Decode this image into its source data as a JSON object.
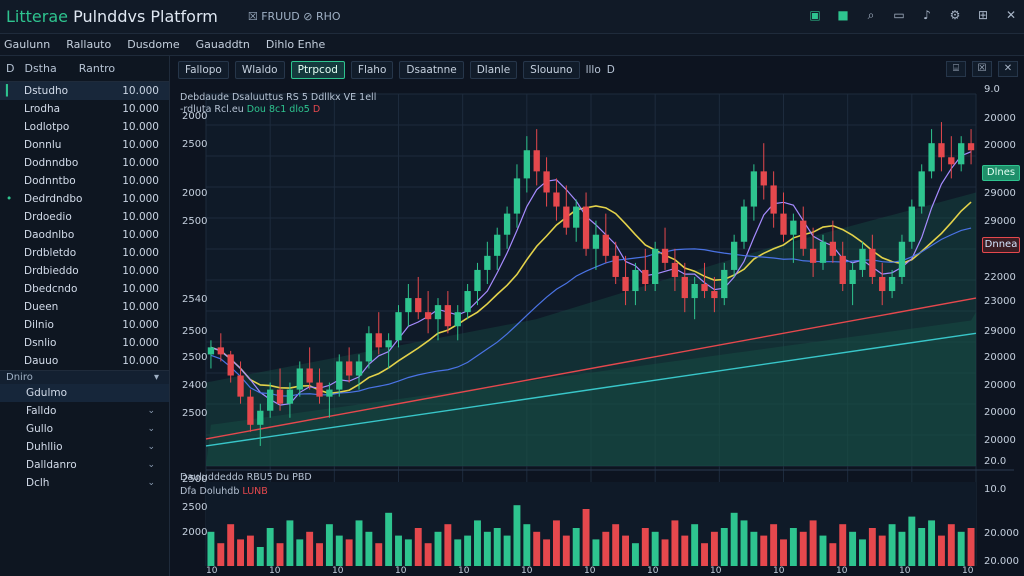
{
  "app": {
    "title_part1": "Litterae",
    "title_part2": " Pulnddvs Platform",
    "title_mid": "☒ FRUUD ⊘ RHO"
  },
  "menu": [
    "Gaulunn",
    "Rallauto",
    "Dusdome",
    "Gauaddtn",
    "Dihlo Enhe"
  ],
  "sidebar": {
    "head": [
      "D",
      "Dstha",
      "Rantro"
    ],
    "rows": [
      {
        "name": "Dstudho",
        "value": "10.000"
      },
      {
        "name": "Lrodha",
        "value": "10.000"
      },
      {
        "name": "Lodlotpo",
        "value": "10.000"
      },
      {
        "name": "Donnlu",
        "value": "10.000"
      },
      {
        "name": "Dodnndbo",
        "value": "10.000"
      },
      {
        "name": "Dodnntbo",
        "value": "10.000"
      },
      {
        "name": "Dedrdndbo",
        "value": "10.000"
      },
      {
        "name": "Drdoedio",
        "value": "10.000"
      },
      {
        "name": "Daodnlbo",
        "value": "10.000"
      },
      {
        "name": "Drdbletdo",
        "value": "10.000"
      },
      {
        "name": "Drdbieddo",
        "value": "10.000"
      },
      {
        "name": "Dbedcndo",
        "value": "10.000"
      },
      {
        "name": "Dueen",
        "value": "10.000"
      },
      {
        "name": "Dilnio",
        "value": "10.000"
      },
      {
        "name": "Dsnlio",
        "value": "10.000"
      },
      {
        "name": "Dauuo",
        "value": "10.000"
      }
    ],
    "section": {
      "label": "Dniro",
      "value": "▾"
    },
    "subs": [
      "Gdulmo",
      "Falldo",
      "Gullo",
      "Duhllio",
      "Dalldanro",
      "Dclh"
    ]
  },
  "tabs": {
    "items": [
      "Fallopo",
      "Wlaldo",
      "Ptrpcod",
      "Flaho",
      "Dsaatnne",
      "Dlanle",
      "Slouuno"
    ],
    "active": 2,
    "extra": [
      "lllo",
      "D"
    ]
  },
  "tools": [
    "⌸",
    "☒",
    "✕"
  ],
  "legend": {
    "line1": "Debdaude Dsaluuttus RS 5 Ddllkx VE 1ell",
    "line2a": "-rdluta Rcl.eu",
    "line2b": " Dou 8c1 dlo5",
    "line2c": " D",
    "vol1": "Dauluddeddo RBU5 Du PBD",
    "vol2a": "Dfa Doluhdb ",
    "vol2b": "LUNB"
  },
  "axis_left": [
    "2000",
    "2500",
    "2000",
    "2500",
    "2540",
    "2500",
    "2500",
    "2400",
    "2500"
  ],
  "axis_right": [
    "9.0",
    "20000",
    "20000",
    "29000",
    "29000",
    "22000",
    "23000",
    "29000",
    "20000",
    "20000",
    "20000",
    "20000",
    "20.0"
  ],
  "tags": {
    "green": "Dlnes",
    "red": "Dnnea"
  },
  "vol_left": [
    "2500",
    "2500",
    "2000"
  ],
  "vol_right": [
    "10.0",
    "20.000",
    "20.000"
  ],
  "xaxis": [
    "10",
    "10",
    "10",
    "10",
    "10",
    "10",
    "10",
    "10",
    "10",
    "10",
    "10",
    "10",
    "10"
  ],
  "colors": {
    "bg": "#0d1420",
    "up": "#2ec48f",
    "down": "#e5484d",
    "grid": "#1d2b3d"
  },
  "chart_data": {
    "type": "candlestick",
    "candles": [
      [
        0.3,
        0.34,
        0.26,
        0.32
      ],
      [
        0.32,
        0.36,
        0.28,
        0.3
      ],
      [
        0.3,
        0.31,
        0.22,
        0.24
      ],
      [
        0.24,
        0.28,
        0.16,
        0.18
      ],
      [
        0.18,
        0.2,
        0.08,
        0.1
      ],
      [
        0.1,
        0.16,
        0.04,
        0.14
      ],
      [
        0.14,
        0.22,
        0.12,
        0.2
      ],
      [
        0.2,
        0.26,
        0.14,
        0.16
      ],
      [
        0.16,
        0.22,
        0.12,
        0.2
      ],
      [
        0.2,
        0.28,
        0.18,
        0.26
      ],
      [
        0.26,
        0.32,
        0.2,
        0.22
      ],
      [
        0.22,
        0.26,
        0.16,
        0.18
      ],
      [
        0.18,
        0.22,
        0.12,
        0.2
      ],
      [
        0.2,
        0.3,
        0.18,
        0.28
      ],
      [
        0.28,
        0.32,
        0.22,
        0.24
      ],
      [
        0.24,
        0.3,
        0.2,
        0.28
      ],
      [
        0.28,
        0.38,
        0.26,
        0.36
      ],
      [
        0.36,
        0.42,
        0.3,
        0.32
      ],
      [
        0.32,
        0.36,
        0.26,
        0.34
      ],
      [
        0.34,
        0.44,
        0.32,
        0.42
      ],
      [
        0.42,
        0.5,
        0.38,
        0.46
      ],
      [
        0.46,
        0.52,
        0.4,
        0.42
      ],
      [
        0.42,
        0.48,
        0.36,
        0.4
      ],
      [
        0.4,
        0.46,
        0.34,
        0.44
      ],
      [
        0.44,
        0.48,
        0.36,
        0.38
      ],
      [
        0.38,
        0.44,
        0.34,
        0.42
      ],
      [
        0.42,
        0.5,
        0.4,
        0.48
      ],
      [
        0.48,
        0.56,
        0.44,
        0.54
      ],
      [
        0.54,
        0.62,
        0.5,
        0.58
      ],
      [
        0.58,
        0.66,
        0.54,
        0.64
      ],
      [
        0.64,
        0.72,
        0.6,
        0.7
      ],
      [
        0.7,
        0.84,
        0.66,
        0.8
      ],
      [
        0.8,
        0.92,
        0.76,
        0.88
      ],
      [
        0.88,
        0.94,
        0.78,
        0.82
      ],
      [
        0.82,
        0.86,
        0.72,
        0.76
      ],
      [
        0.76,
        0.8,
        0.68,
        0.72
      ],
      [
        0.72,
        0.78,
        0.64,
        0.66
      ],
      [
        0.66,
        0.74,
        0.62,
        0.72
      ],
      [
        0.72,
        0.76,
        0.58,
        0.6
      ],
      [
        0.6,
        0.68,
        0.54,
        0.64
      ],
      [
        0.64,
        0.7,
        0.56,
        0.58
      ],
      [
        0.58,
        0.62,
        0.5,
        0.52
      ],
      [
        0.52,
        0.58,
        0.44,
        0.48
      ],
      [
        0.48,
        0.56,
        0.44,
        0.54
      ],
      [
        0.54,
        0.6,
        0.48,
        0.5
      ],
      [
        0.5,
        0.62,
        0.48,
        0.6
      ],
      [
        0.6,
        0.66,
        0.54,
        0.56
      ],
      [
        0.56,
        0.6,
        0.48,
        0.52
      ],
      [
        0.52,
        0.56,
        0.42,
        0.46
      ],
      [
        0.46,
        0.52,
        0.4,
        0.5
      ],
      [
        0.5,
        0.56,
        0.46,
        0.48
      ],
      [
        0.48,
        0.52,
        0.42,
        0.46
      ],
      [
        0.46,
        0.56,
        0.44,
        0.54
      ],
      [
        0.54,
        0.64,
        0.52,
        0.62
      ],
      [
        0.62,
        0.74,
        0.6,
        0.72
      ],
      [
        0.72,
        0.84,
        0.68,
        0.82
      ],
      [
        0.82,
        0.9,
        0.74,
        0.78
      ],
      [
        0.78,
        0.82,
        0.66,
        0.7
      ],
      [
        0.7,
        0.76,
        0.62,
        0.64
      ],
      [
        0.64,
        0.7,
        0.56,
        0.68
      ],
      [
        0.68,
        0.72,
        0.58,
        0.6
      ],
      [
        0.6,
        0.66,
        0.52,
        0.56
      ],
      [
        0.56,
        0.64,
        0.54,
        0.62
      ],
      [
        0.62,
        0.68,
        0.56,
        0.58
      ],
      [
        0.58,
        0.62,
        0.48,
        0.5
      ],
      [
        0.5,
        0.56,
        0.44,
        0.54
      ],
      [
        0.54,
        0.62,
        0.52,
        0.6
      ],
      [
        0.6,
        0.64,
        0.5,
        0.52
      ],
      [
        0.52,
        0.56,
        0.44,
        0.48
      ],
      [
        0.48,
        0.54,
        0.46,
        0.52
      ],
      [
        0.52,
        0.64,
        0.5,
        0.62
      ],
      [
        0.62,
        0.74,
        0.6,
        0.72
      ],
      [
        0.72,
        0.84,
        0.7,
        0.82
      ],
      [
        0.82,
        0.94,
        0.8,
        0.9
      ],
      [
        0.9,
        0.96,
        0.82,
        0.86
      ],
      [
        0.86,
        0.92,
        0.8,
        0.84
      ],
      [
        0.84,
        0.92,
        0.82,
        0.9
      ],
      [
        0.9,
        0.94,
        0.84,
        0.88
      ]
    ],
    "volumes": [
      0.45,
      0.3,
      0.55,
      0.35,
      0.4,
      0.25,
      0.5,
      0.3,
      0.6,
      0.35,
      0.45,
      0.3,
      0.55,
      0.4,
      0.35,
      0.6,
      0.45,
      0.3,
      0.7,
      0.4,
      0.35,
      0.5,
      0.3,
      0.45,
      0.55,
      0.35,
      0.4,
      0.6,
      0.45,
      0.5,
      0.4,
      0.8,
      0.55,
      0.45,
      0.35,
      0.6,
      0.4,
      0.5,
      0.75,
      0.35,
      0.45,
      0.55,
      0.4,
      0.3,
      0.5,
      0.45,
      0.35,
      0.6,
      0.4,
      0.55,
      0.3,
      0.45,
      0.5,
      0.7,
      0.6,
      0.45,
      0.4,
      0.55,
      0.35,
      0.5,
      0.45,
      0.6,
      0.4,
      0.3,
      0.55,
      0.45,
      0.35,
      0.5,
      0.4,
      0.55,
      0.45,
      0.65,
      0.5,
      0.6,
      0.4,
      0.55,
      0.45,
      0.5
    ]
  }
}
